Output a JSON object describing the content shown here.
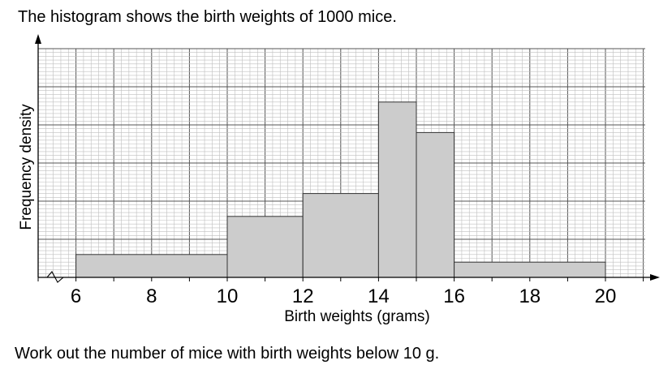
{
  "question": "The histogram shows the birth weights of 1000 mice.",
  "task": "Work out the number of mice with birth weights below 10 g.",
  "chart_data": {
    "type": "histogram",
    "xlabel": "Birth weights (grams)",
    "ylabel": "Frequency density",
    "x_ticks": [
      6,
      8,
      10,
      12,
      14,
      16,
      18,
      20
    ],
    "x_tick_labels": [
      "6",
      "8",
      "10",
      "12",
      "14",
      "16",
      "18",
      "20"
    ],
    "x_range": [
      5,
      21
    ],
    "axis_break": true,
    "y_tick_labels_shown": false,
    "grid": true,
    "bar_color": "#cccccc",
    "bins": [
      {
        "from": 6,
        "to": 10,
        "height_small_squares": 6
      },
      {
        "from": 10,
        "to": 12,
        "height_small_squares": 16
      },
      {
        "from": 12,
        "to": 14,
        "height_small_squares": 22
      },
      {
        "from": 14,
        "to": 15,
        "height_small_squares": 46
      },
      {
        "from": 15,
        "to": 16,
        "height_small_squares": 38
      },
      {
        "from": 16,
        "to": 20,
        "height_small_squares": 4
      }
    ]
  }
}
